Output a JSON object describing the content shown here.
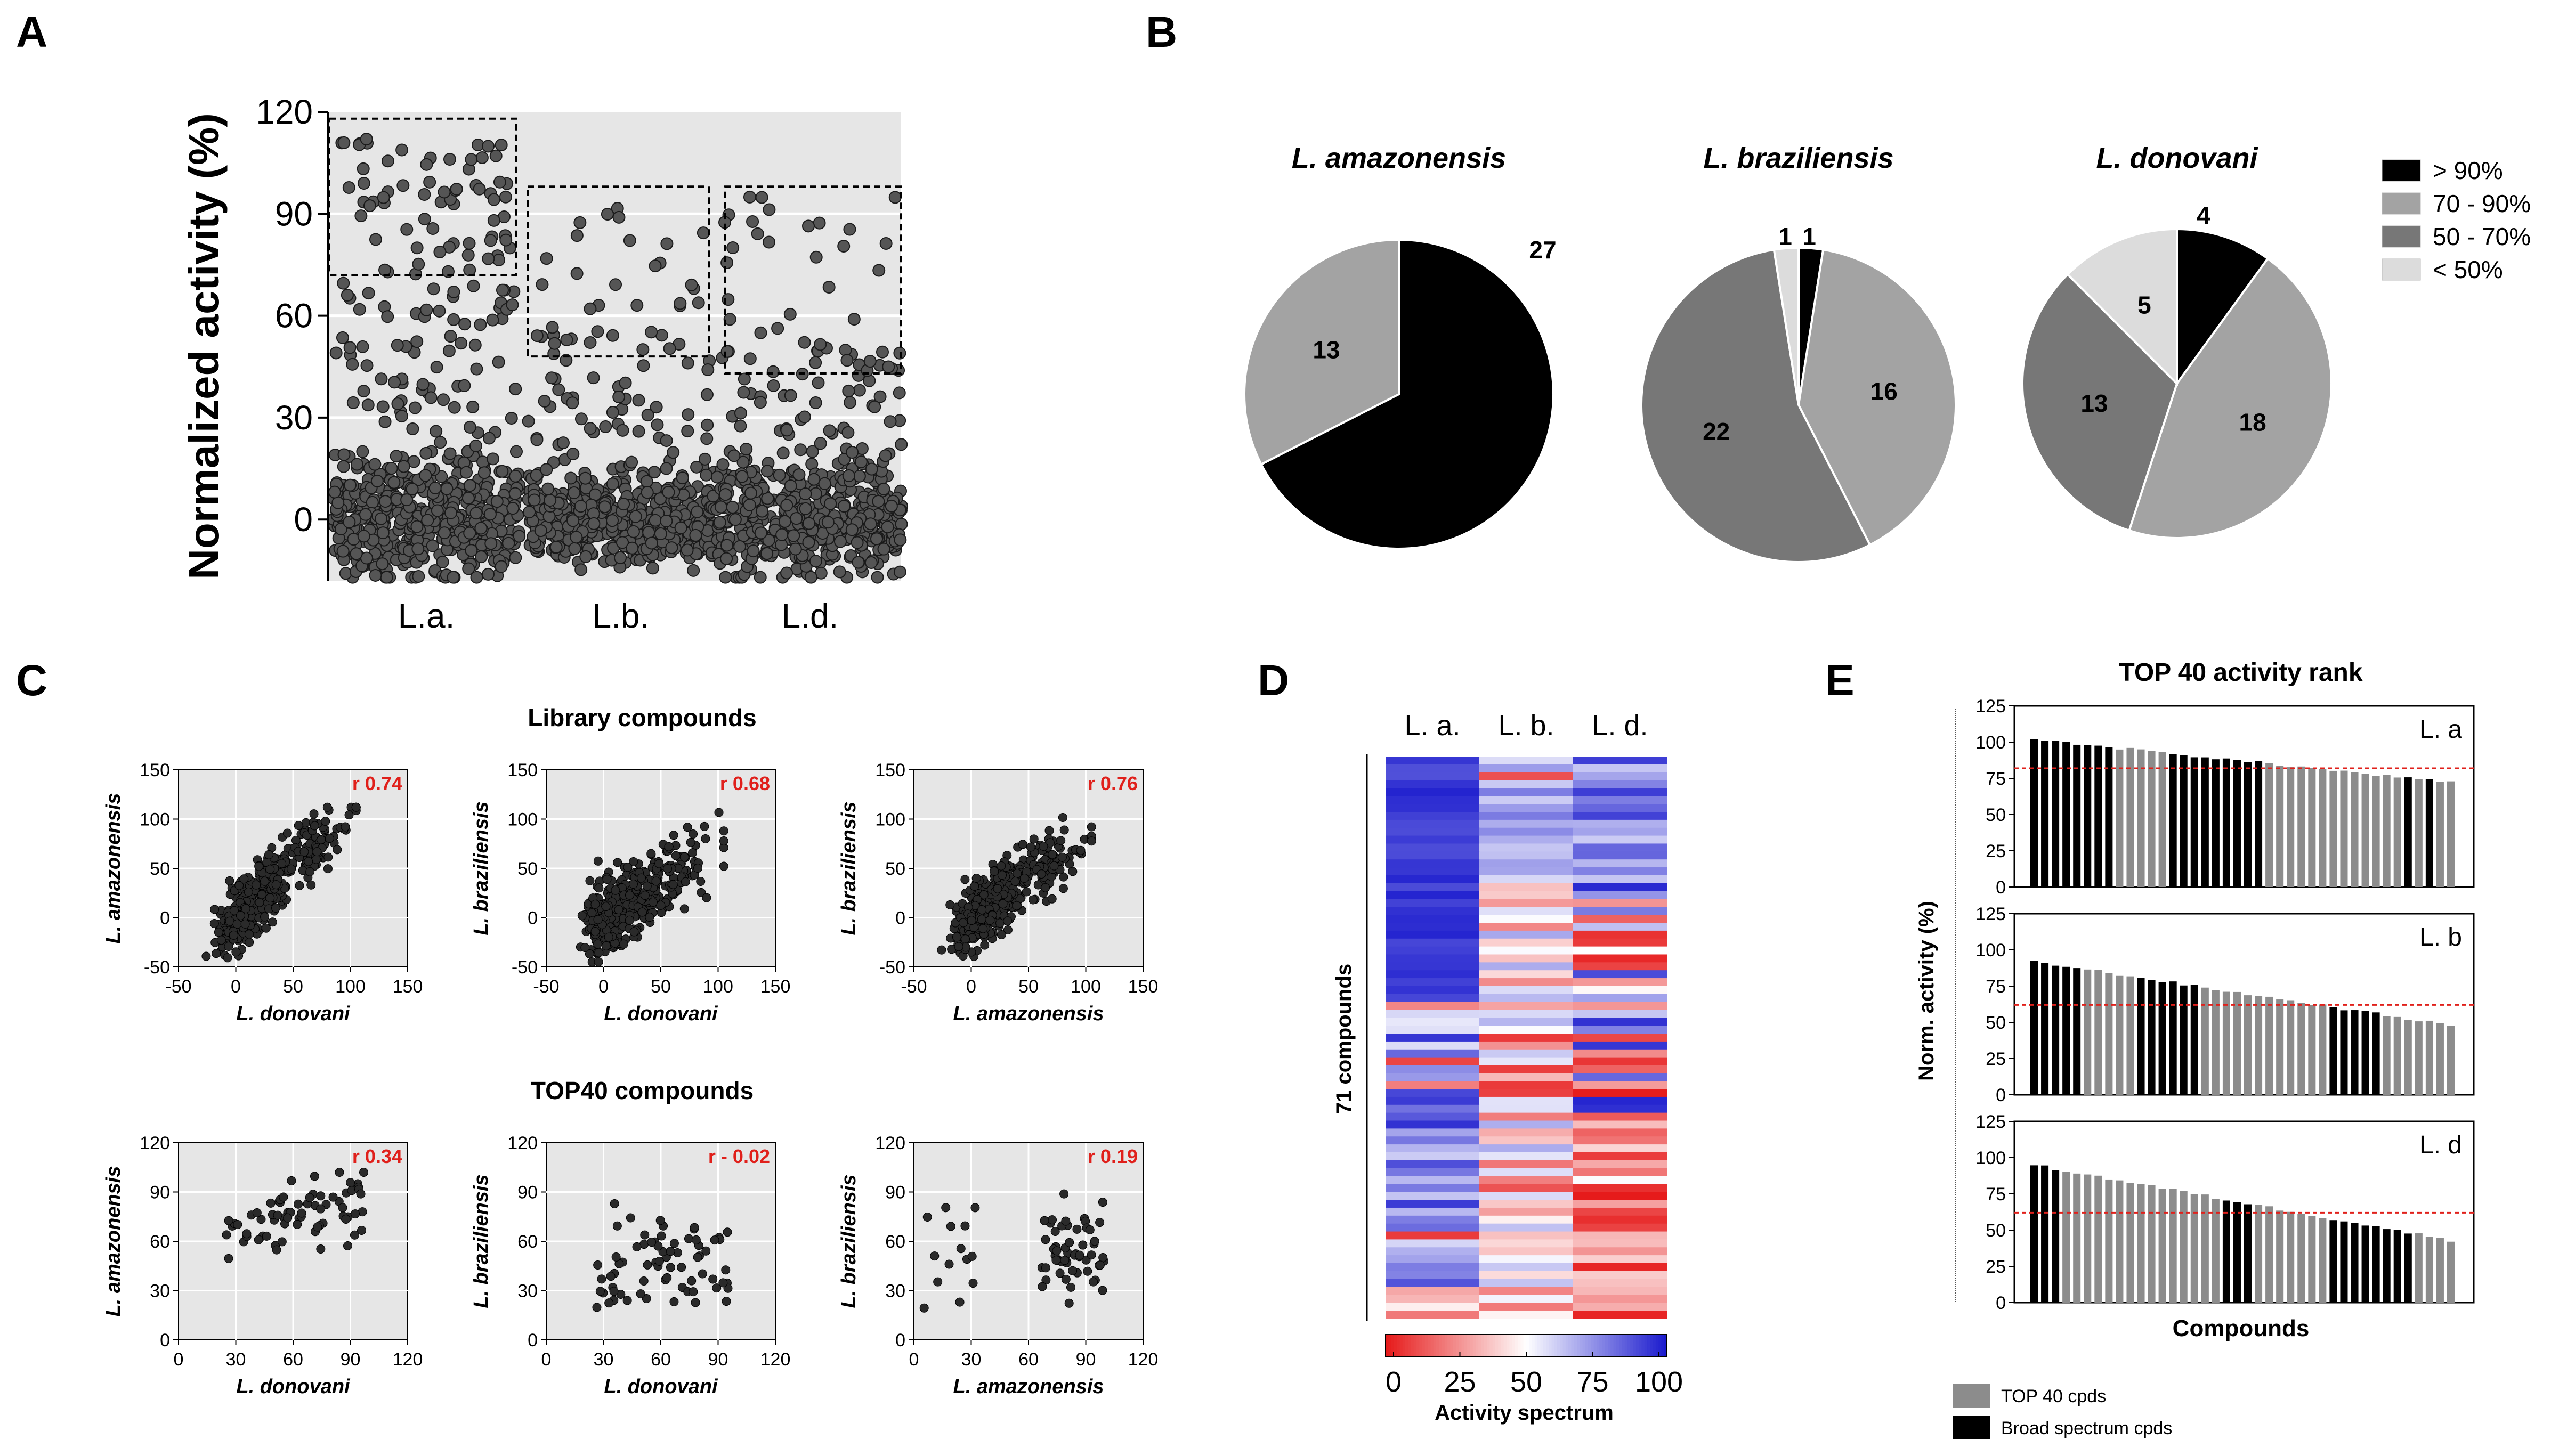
{
  "figure": {
    "panel_labels": [
      "A",
      "B",
      "C",
      "D",
      "E"
    ]
  },
  "colors": {
    "plot_bg": "#e6e6e6",
    "grid": "#ffffff",
    "dot_fill": "#555555",
    "dot_stroke": "#1a1a1a",
    "red": "#e0201b",
    "blue": "#1a1acc",
    "pie_black": "#000000",
    "pie_dark": "#777777",
    "pie_mid": "#a3a3a3",
    "pie_light": "#dcdcdc",
    "bar_black": "#000000",
    "bar_grey": "#8c8c8c"
  },
  "chart_data": [
    {
      "id": "A",
      "type": "scatter",
      "ylabel": "Normalized activity (%)",
      "categories": [
        "L.a.",
        "L.b.",
        "L.d."
      ],
      "ylim": [
        -18,
        120
      ],
      "yticks": [
        0,
        30,
        60,
        90,
        120
      ],
      "grid": true,
      "highlight_boxes": [
        {
          "category": "L.a.",
          "y_range": [
            72,
            118
          ]
        },
        {
          "category": "L.b.",
          "y_range": [
            48,
            98
          ]
        },
        {
          "category": "L.d.",
          "y_range": [
            43,
            98
          ]
        }
      ]
    },
    {
      "id": "B",
      "type": "pie",
      "legend": [
        "> 90%",
        "70 - 90%",
        "50 - 70%",
        "< 50%"
      ],
      "legend_position": "right",
      "pies": [
        {
          "title": "L. amazonensis",
          "slices": [
            {
              "cls": "> 90%",
              "value": 27
            },
            {
              "cls": "70 - 90%",
              "value": 13
            }
          ]
        },
        {
          "title": "L. braziliensis",
          "slices": [
            {
              "cls": "> 90%",
              "value": 1
            },
            {
              "cls": "70 - 90%",
              "value": 16
            },
            {
              "cls": "50 - 70%",
              "value": 22
            },
            {
              "cls": "< 50%",
              "value": 1
            }
          ]
        },
        {
          "title": "L. donovani",
          "slices": [
            {
              "cls": "> 90%",
              "value": 4
            },
            {
              "cls": "70 - 90%",
              "value": 18
            },
            {
              "cls": "50 - 70%",
              "value": 13
            },
            {
              "cls": "< 50%",
              "value": 5
            }
          ]
        }
      ]
    },
    {
      "id": "C",
      "type": "scatter",
      "rows": [
        {
          "title": "Library compounds",
          "xlim": [
            -50,
            150
          ],
          "ylim": [
            -50,
            150
          ],
          "xticks": [
            "-50",
            "0",
            "50",
            "100",
            "150"
          ],
          "yticks": [
            "-50",
            "0",
            "50",
            "100",
            "150"
          ],
          "plots": [
            {
              "xlabel": "L. donovani",
              "ylabel": "L. amazonensis",
              "r": "r 0.74"
            },
            {
              "xlabel": "L. donovani",
              "ylabel": "L. braziliensis",
              "r": "r 0.68"
            },
            {
              "xlabel": "L. amazonensis",
              "ylabel": "L. braziliensis",
              "r": "r 0.76"
            }
          ]
        },
        {
          "title": "TOP40 compounds",
          "xlim": [
            0,
            120
          ],
          "ylim": [
            0,
            120
          ],
          "xticks": [
            "0",
            "30",
            "60",
            "90",
            "120"
          ],
          "yticks": [
            "0",
            "30",
            "60",
            "90",
            "120"
          ],
          "plots": [
            {
              "xlabel": "L. donovani",
              "ylabel": "L. amazonensis",
              "r": "r 0.34"
            },
            {
              "xlabel": "L. donovani",
              "ylabel": "L. braziliensis",
              "r": "r - 0.02"
            },
            {
              "xlabel": "L. amazonensis",
              "ylabel": "L. braziliensis",
              "r": "r 0.19"
            }
          ]
        }
      ]
    },
    {
      "id": "D",
      "type": "heatmap",
      "columns": [
        "L. a.",
        "L. b.",
        "L. d."
      ],
      "row_label": "71 compounds",
      "n_rows": 71,
      "colorbar_label": "Activity spectrum",
      "colorbar_ticks": [
        "0",
        "25",
        "50",
        "75",
        "100"
      ],
      "value_range": [
        0,
        100
      ]
    },
    {
      "id": "E",
      "type": "bar",
      "title": "TOP 40 activity rank",
      "ylabel": "Norm. activity (%)",
      "xlabel": "Compounds",
      "ylim": [
        0,
        125
      ],
      "yticks": [
        "0",
        "25",
        "50",
        "75",
        "100",
        "125"
      ],
      "legend": [
        "TOP 40 cpds",
        "Broad spectrum cpds"
      ],
      "legend_position": "bottom-left",
      "subpanels": [
        {
          "label": "L. a",
          "threshold": 82,
          "start": 102,
          "end": 72
        },
        {
          "label": "L. b",
          "threshold": 62,
          "start": 92,
          "end": 48
        },
        {
          "label": "L. d",
          "threshold": 62,
          "start": 95,
          "end": 43
        }
      ]
    }
  ]
}
